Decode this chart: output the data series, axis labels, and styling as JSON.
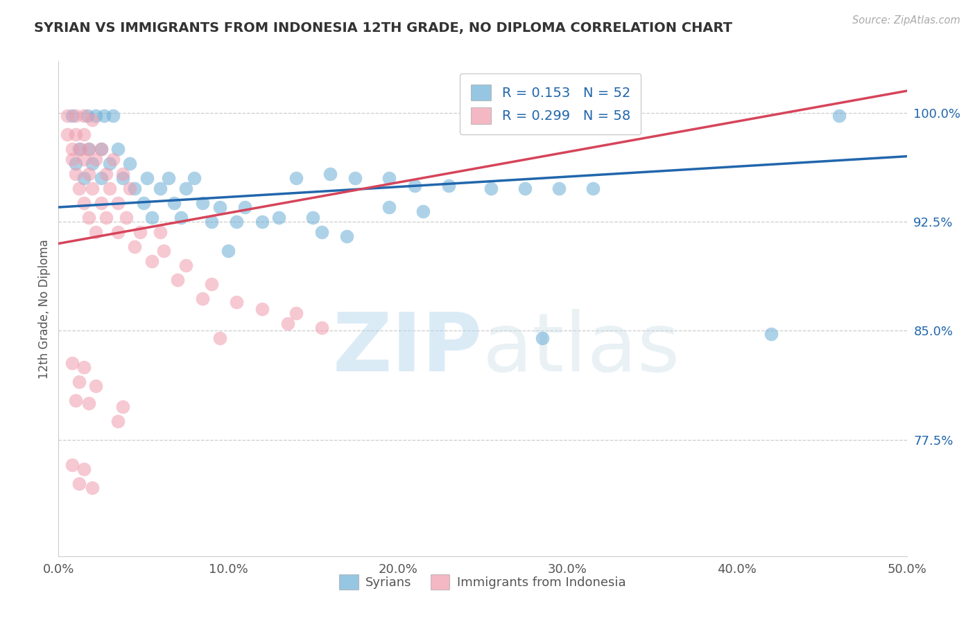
{
  "title": "SYRIAN VS IMMIGRANTS FROM INDONESIA 12TH GRADE, NO DIPLOMA CORRELATION CHART",
  "source_text": "Source: ZipAtlas.com",
  "ylabel": "12th Grade, No Diploma",
  "xlim": [
    0.0,
    0.5
  ],
  "ylim": [
    0.695,
    1.035
  ],
  "xtick_labels": [
    "0.0%",
    "",
    "10.0%",
    "",
    "20.0%",
    "",
    "30.0%",
    "",
    "40.0%",
    "",
    "50.0%"
  ],
  "xtick_values": [
    0.0,
    0.05,
    0.1,
    0.15,
    0.2,
    0.25,
    0.3,
    0.35,
    0.4,
    0.45,
    0.5
  ],
  "ytick_labels": [
    "77.5%",
    "85.0%",
    "92.5%",
    "100.0%"
  ],
  "ytick_values": [
    0.775,
    0.85,
    0.925,
    1.0
  ],
  "legend_r1": "R = 0.153   N = 52",
  "legend_r2": "R = 0.299   N = 58",
  "legend_label1": "Syrians",
  "legend_label2": "Immigrants from Indonesia",
  "blue_color": "#6aaed6",
  "pink_color": "#f09bad",
  "blue_line_color": "#2166ac",
  "pink_line_color": "#d6445a",
  "watermark_zip": "ZIP",
  "watermark_atlas": "atlas",
  "blue_R": 0.153,
  "blue_N": 52,
  "pink_R": 0.299,
  "pink_N": 58,
  "blue_line_x": [
    0.0,
    0.5
  ],
  "blue_line_y": [
    0.935,
    0.97
  ],
  "pink_line_x": [
    0.0,
    0.5
  ],
  "pink_line_y": [
    0.91,
    1.015
  ],
  "blue_dots": [
    [
      0.008,
      0.998
    ],
    [
      0.017,
      0.998
    ],
    [
      0.022,
      0.998
    ],
    [
      0.027,
      0.998
    ],
    [
      0.032,
      0.998
    ],
    [
      0.012,
      0.975
    ],
    [
      0.018,
      0.975
    ],
    [
      0.025,
      0.975
    ],
    [
      0.035,
      0.975
    ],
    [
      0.01,
      0.965
    ],
    [
      0.02,
      0.965
    ],
    [
      0.03,
      0.965
    ],
    [
      0.042,
      0.965
    ],
    [
      0.015,
      0.955
    ],
    [
      0.025,
      0.955
    ],
    [
      0.038,
      0.955
    ],
    [
      0.052,
      0.955
    ],
    [
      0.065,
      0.955
    ],
    [
      0.08,
      0.955
    ],
    [
      0.045,
      0.948
    ],
    [
      0.06,
      0.948
    ],
    [
      0.075,
      0.948
    ],
    [
      0.05,
      0.938
    ],
    [
      0.068,
      0.938
    ],
    [
      0.085,
      0.938
    ],
    [
      0.095,
      0.935
    ],
    [
      0.11,
      0.935
    ],
    [
      0.055,
      0.928
    ],
    [
      0.072,
      0.928
    ],
    [
      0.09,
      0.925
    ],
    [
      0.105,
      0.925
    ],
    [
      0.12,
      0.925
    ],
    [
      0.13,
      0.928
    ],
    [
      0.15,
      0.928
    ],
    [
      0.14,
      0.955
    ],
    [
      0.16,
      0.958
    ],
    [
      0.175,
      0.955
    ],
    [
      0.195,
      0.955
    ],
    [
      0.21,
      0.95
    ],
    [
      0.23,
      0.95
    ],
    [
      0.255,
      0.948
    ],
    [
      0.275,
      0.948
    ],
    [
      0.295,
      0.948
    ],
    [
      0.315,
      0.948
    ],
    [
      0.195,
      0.935
    ],
    [
      0.215,
      0.932
    ],
    [
      0.155,
      0.918
    ],
    [
      0.17,
      0.915
    ],
    [
      0.1,
      0.905
    ],
    [
      0.46,
      0.998
    ],
    [
      0.285,
      0.845
    ],
    [
      0.42,
      0.848
    ]
  ],
  "pink_dots": [
    [
      0.005,
      0.998
    ],
    [
      0.01,
      0.998
    ],
    [
      0.015,
      0.998
    ],
    [
      0.02,
      0.995
    ],
    [
      0.005,
      0.985
    ],
    [
      0.01,
      0.985
    ],
    [
      0.015,
      0.985
    ],
    [
      0.008,
      0.975
    ],
    [
      0.013,
      0.975
    ],
    [
      0.018,
      0.975
    ],
    [
      0.025,
      0.975
    ],
    [
      0.008,
      0.968
    ],
    [
      0.015,
      0.968
    ],
    [
      0.022,
      0.968
    ],
    [
      0.032,
      0.968
    ],
    [
      0.01,
      0.958
    ],
    [
      0.018,
      0.958
    ],
    [
      0.028,
      0.958
    ],
    [
      0.038,
      0.958
    ],
    [
      0.012,
      0.948
    ],
    [
      0.02,
      0.948
    ],
    [
      0.03,
      0.948
    ],
    [
      0.042,
      0.948
    ],
    [
      0.015,
      0.938
    ],
    [
      0.025,
      0.938
    ],
    [
      0.035,
      0.938
    ],
    [
      0.018,
      0.928
    ],
    [
      0.028,
      0.928
    ],
    [
      0.04,
      0.928
    ],
    [
      0.022,
      0.918
    ],
    [
      0.035,
      0.918
    ],
    [
      0.048,
      0.918
    ],
    [
      0.06,
      0.918
    ],
    [
      0.045,
      0.908
    ],
    [
      0.062,
      0.905
    ],
    [
      0.055,
      0.898
    ],
    [
      0.075,
      0.895
    ],
    [
      0.07,
      0.885
    ],
    [
      0.09,
      0.882
    ],
    [
      0.085,
      0.872
    ],
    [
      0.105,
      0.87
    ],
    [
      0.12,
      0.865
    ],
    [
      0.14,
      0.862
    ],
    [
      0.135,
      0.855
    ],
    [
      0.155,
      0.852
    ],
    [
      0.095,
      0.845
    ],
    [
      0.008,
      0.828
    ],
    [
      0.015,
      0.825
    ],
    [
      0.012,
      0.815
    ],
    [
      0.022,
      0.812
    ],
    [
      0.01,
      0.802
    ],
    [
      0.018,
      0.8
    ],
    [
      0.038,
      0.798
    ],
    [
      0.035,
      0.788
    ],
    [
      0.008,
      0.758
    ],
    [
      0.015,
      0.755
    ],
    [
      0.012,
      0.745
    ],
    [
      0.02,
      0.742
    ]
  ]
}
